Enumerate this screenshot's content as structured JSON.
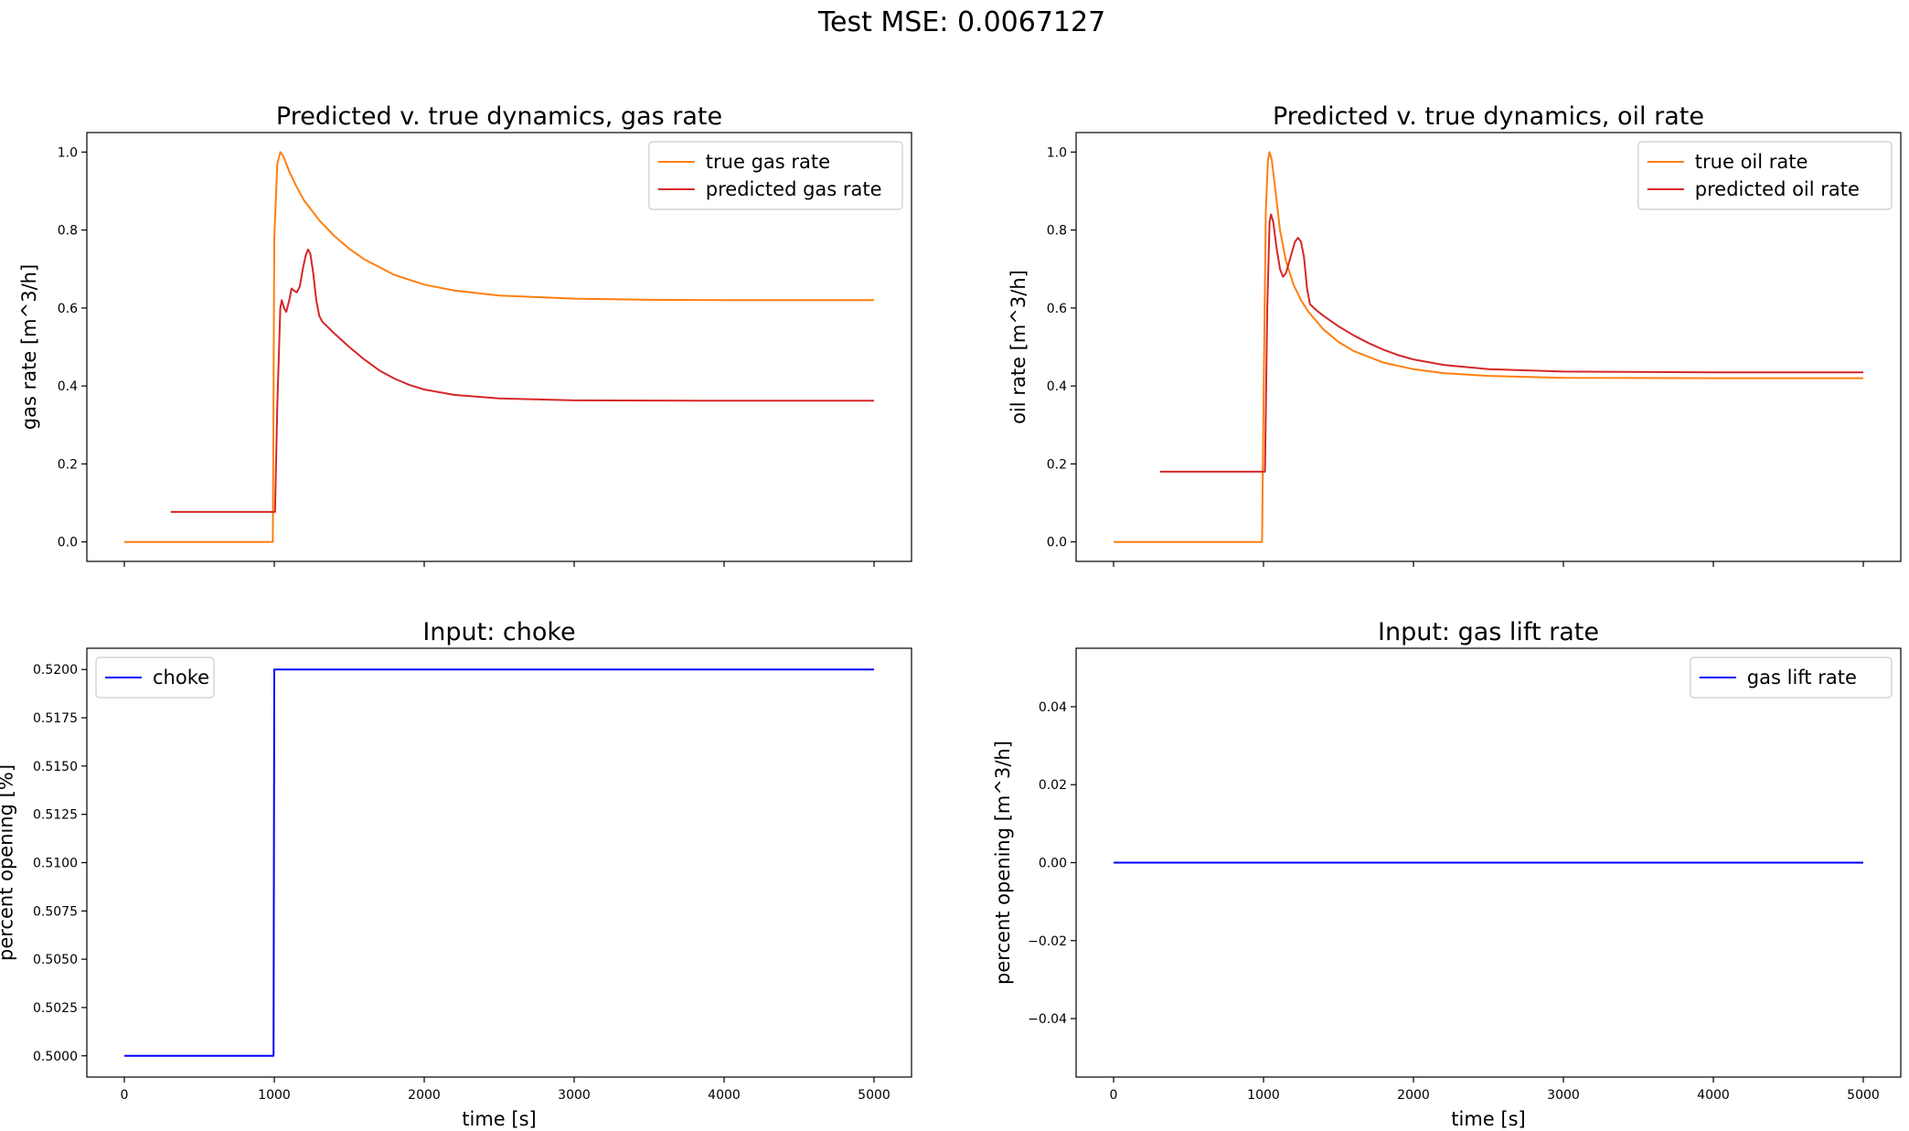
{
  "figure": {
    "title": "Test MSE: 0.0067127"
  },
  "chart_data": [
    {
      "type": "line",
      "title": "Predicted v. true dynamics, gas rate",
      "xlabel": "",
      "ylabel": "gas rate [m^3/h]",
      "xlim": [
        -250,
        5250
      ],
      "ylim": [
        -0.05,
        1.05
      ],
      "xticks": [
        0,
        1000,
        2000,
        3000,
        4000,
        5000
      ],
      "xtick_labels_visible": false,
      "yticks": [
        0.0,
        0.2,
        0.4,
        0.6,
        0.8,
        1.0
      ],
      "ytick_decimals": 1,
      "legend": "top-right",
      "series": [
        {
          "name": "true gas rate",
          "color": "#ff7f0e",
          "points": [
            [
              0,
              0
            ],
            [
              990,
              0
            ],
            [
              1000,
              0.78
            ],
            [
              1020,
              0.97
            ],
            [
              1040,
              1.0
            ],
            [
              1060,
              0.99
            ],
            [
              1100,
              0.95
            ],
            [
              1150,
              0.91
            ],
            [
              1200,
              0.875
            ],
            [
              1300,
              0.825
            ],
            [
              1400,
              0.785
            ],
            [
              1500,
              0.752
            ],
            [
              1600,
              0.725
            ],
            [
              1800,
              0.685
            ],
            [
              2000,
              0.66
            ],
            [
              2200,
              0.645
            ],
            [
              2500,
              0.632
            ],
            [
              3000,
              0.624
            ],
            [
              3500,
              0.621
            ],
            [
              4000,
              0.62
            ],
            [
              5000,
              0.62
            ]
          ]
        },
        {
          "name": "predicted gas rate",
          "color": "#d62728",
          "points": [
            [
              310,
              0.077
            ],
            [
              1005,
              0.077
            ],
            [
              1020,
              0.35
            ],
            [
              1040,
              0.6
            ],
            [
              1050,
              0.62
            ],
            [
              1065,
              0.6
            ],
            [
              1080,
              0.59
            ],
            [
              1100,
              0.62
            ],
            [
              1115,
              0.65
            ],
            [
              1130,
              0.645
            ],
            [
              1150,
              0.64
            ],
            [
              1170,
              0.655
            ],
            [
              1190,
              0.7
            ],
            [
              1210,
              0.735
            ],
            [
              1225,
              0.75
            ],
            [
              1240,
              0.74
            ],
            [
              1260,
              0.69
            ],
            [
              1280,
              0.62
            ],
            [
              1300,
              0.58
            ],
            [
              1320,
              0.565
            ],
            [
              1400,
              0.535
            ],
            [
              1500,
              0.5
            ],
            [
              1600,
              0.468
            ],
            [
              1700,
              0.44
            ],
            [
              1800,
              0.419
            ],
            [
              1900,
              0.403
            ],
            [
              2000,
              0.391
            ],
            [
              2200,
              0.377
            ],
            [
              2500,
              0.368
            ],
            [
              3000,
              0.363
            ],
            [
              4000,
              0.362
            ],
            [
              5000,
              0.362
            ]
          ]
        }
      ]
    },
    {
      "type": "line",
      "title": "Predicted v. true dynamics, oil rate",
      "xlabel": "",
      "ylabel": "oil rate [m^3/h]",
      "xlim": [
        -250,
        5250
      ],
      "ylim": [
        -0.05,
        1.05
      ],
      "xticks": [
        0,
        1000,
        2000,
        3000,
        4000,
        5000
      ],
      "xtick_labels_visible": false,
      "yticks": [
        0.0,
        0.2,
        0.4,
        0.6,
        0.8,
        1.0
      ],
      "ytick_decimals": 1,
      "legend": "top-right",
      "series": [
        {
          "name": "true oil rate",
          "color": "#ff7f0e",
          "points": [
            [
              0,
              0
            ],
            [
              990,
              0
            ],
            [
              1000,
              0.35
            ],
            [
              1015,
              0.85
            ],
            [
              1030,
              0.98
            ],
            [
              1040,
              1.0
            ],
            [
              1055,
              0.98
            ],
            [
              1080,
              0.9
            ],
            [
              1110,
              0.8
            ],
            [
              1150,
              0.72
            ],
            [
              1200,
              0.66
            ],
            [
              1250,
              0.62
            ],
            [
              1300,
              0.59
            ],
            [
              1400,
              0.545
            ],
            [
              1500,
              0.513
            ],
            [
              1600,
              0.49
            ],
            [
              1800,
              0.46
            ],
            [
              2000,
              0.443
            ],
            [
              2200,
              0.433
            ],
            [
              2500,
              0.426
            ],
            [
              3000,
              0.421
            ],
            [
              4000,
              0.42
            ],
            [
              5000,
              0.42
            ]
          ]
        },
        {
          "name": "predicted oil rate",
          "color": "#d62728",
          "points": [
            [
              310,
              0.18
            ],
            [
              1010,
              0.18
            ],
            [
              1025,
              0.6
            ],
            [
              1040,
              0.82
            ],
            [
              1050,
              0.84
            ],
            [
              1065,
              0.82
            ],
            [
              1085,
              0.76
            ],
            [
              1110,
              0.7
            ],
            [
              1130,
              0.68
            ],
            [
              1150,
              0.69
            ],
            [
              1180,
              0.73
            ],
            [
              1210,
              0.77
            ],
            [
              1230,
              0.78
            ],
            [
              1250,
              0.77
            ],
            [
              1270,
              0.73
            ],
            [
              1290,
              0.65
            ],
            [
              1310,
              0.61
            ],
            [
              1350,
              0.595
            ],
            [
              1400,
              0.58
            ],
            [
              1500,
              0.553
            ],
            [
              1600,
              0.53
            ],
            [
              1700,
              0.51
            ],
            [
              1800,
              0.493
            ],
            [
              1900,
              0.479
            ],
            [
              2000,
              0.468
            ],
            [
              2200,
              0.454
            ],
            [
              2500,
              0.443
            ],
            [
              3000,
              0.437
            ],
            [
              4000,
              0.435
            ],
            [
              5000,
              0.435
            ]
          ]
        }
      ]
    },
    {
      "type": "line",
      "title": "Input: choke",
      "xlabel": "time [s]",
      "ylabel": "percent opening [%]",
      "xlim": [
        -250,
        5250
      ],
      "ylim": [
        0.4989,
        0.5211
      ],
      "xticks": [
        0,
        1000,
        2000,
        3000,
        4000,
        5000
      ],
      "xtick_labels_visible": true,
      "yticks": [
        0.5,
        0.5025,
        0.505,
        0.5075,
        0.51,
        0.5125,
        0.515,
        0.5175,
        0.52
      ],
      "ytick_decimals": 4,
      "legend": "top-left",
      "series": [
        {
          "name": "choke",
          "color": "#0000ff",
          "points": [
            [
              0,
              0.5
            ],
            [
              995,
              0.5
            ],
            [
              1000,
              0.52
            ],
            [
              5000,
              0.52
            ]
          ]
        }
      ]
    },
    {
      "type": "line",
      "title": "Input: gas lift rate",
      "xlabel": "time [s]",
      "ylabel": "percent opening [m^3/h]",
      "xlim": [
        -250,
        5250
      ],
      "ylim": [
        -0.055,
        0.055
      ],
      "xticks": [
        0,
        1000,
        2000,
        3000,
        4000,
        5000
      ],
      "xtick_labels_visible": true,
      "yticks": [
        -0.04,
        -0.02,
        0.0,
        0.02,
        0.04
      ],
      "ytick_decimals": 2,
      "legend": "top-right",
      "series": [
        {
          "name": "gas lift rate",
          "color": "#0000ff",
          "points": [
            [
              0,
              0
            ],
            [
              5000,
              0
            ]
          ]
        }
      ]
    }
  ]
}
